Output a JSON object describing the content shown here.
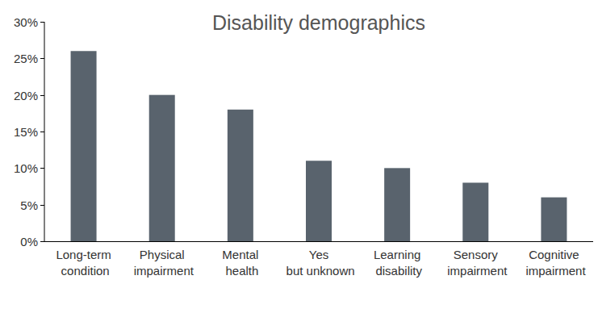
{
  "chart_data": {
    "type": "bar",
    "title": "Disability demographics",
    "categories": [
      "Long-term condition",
      "Physical impairment",
      "Mental health",
      "Yes but unknown",
      "Learning disability",
      "Sensory impairment",
      "Cognitive impairment"
    ],
    "values": [
      26,
      20,
      18,
      11,
      10,
      8,
      6
    ],
    "color": "#59636d",
    "ylim": [
      0,
      30
    ],
    "yticks": [
      {
        "value": 0,
        "label": "0%"
      },
      {
        "value": 5,
        "label": "5%"
      },
      {
        "value": 10,
        "label": "10%"
      },
      {
        "value": 15,
        "label": "15%"
      },
      {
        "value": 20,
        "label": "20%"
      },
      {
        "value": 25,
        "label": "25%"
      },
      {
        "value": 30,
        "label": "30%"
      }
    ],
    "grid": false
  }
}
